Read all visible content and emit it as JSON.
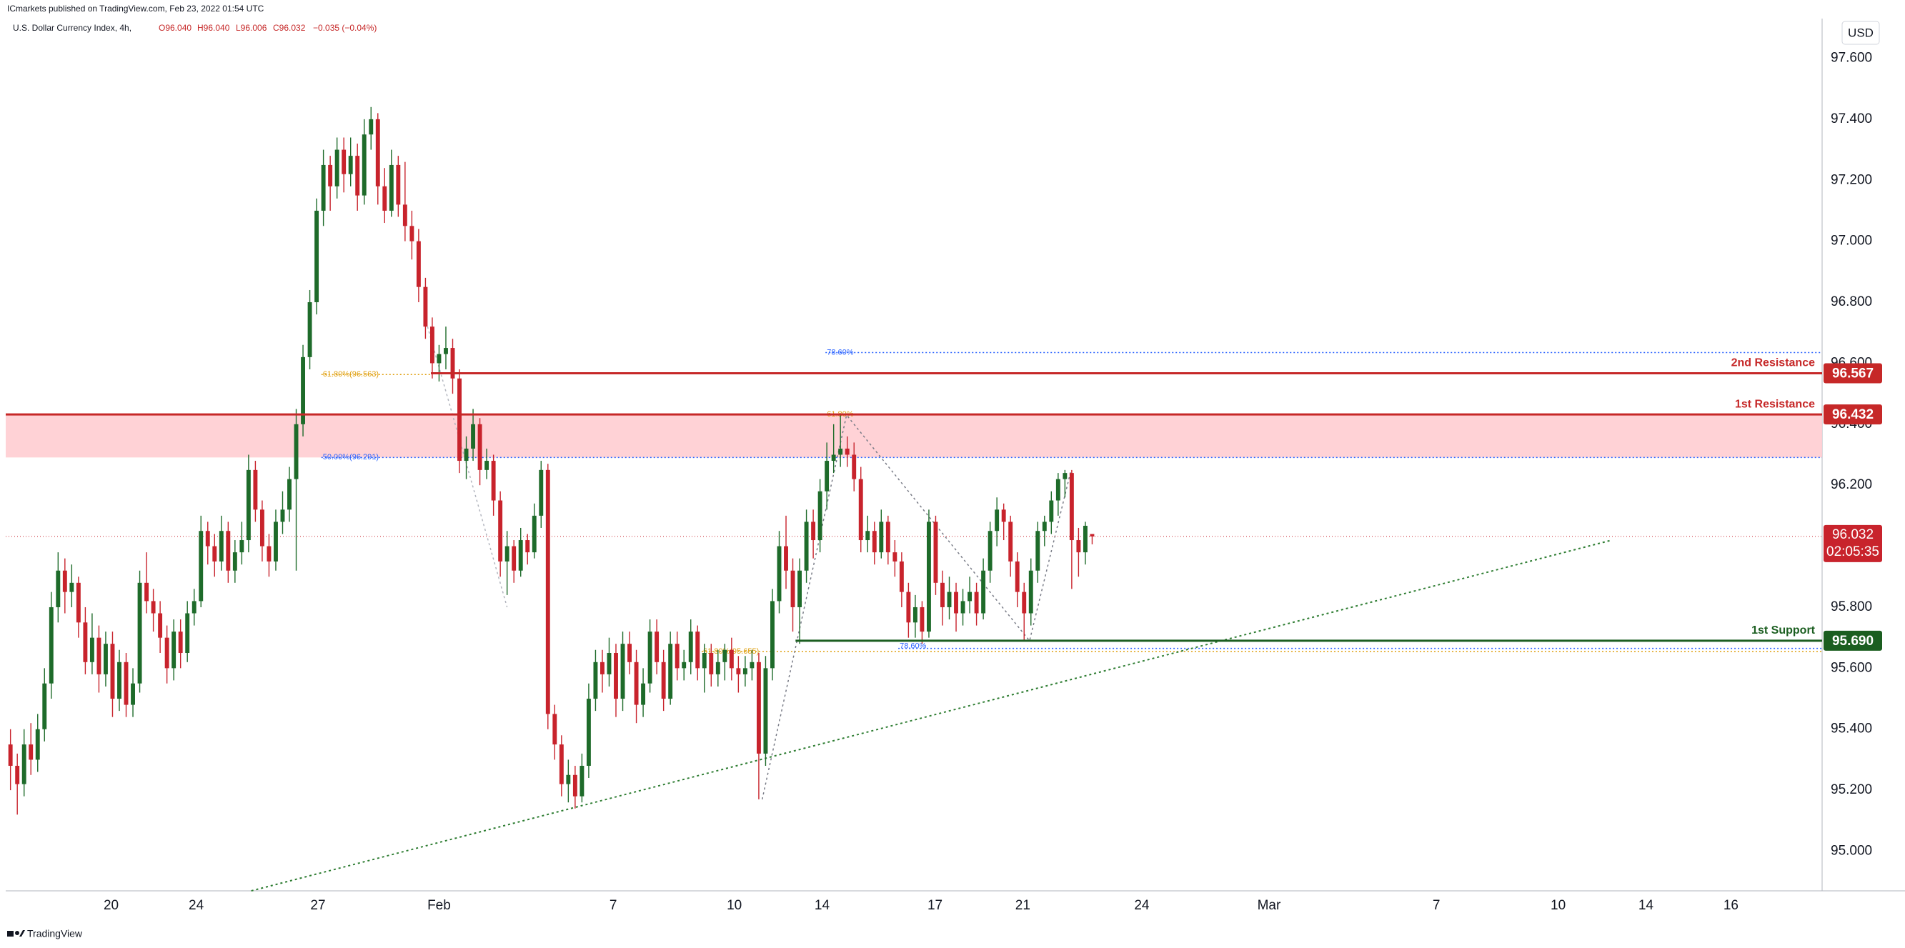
{
  "header": {
    "published": "ICmarkets published on TradingView.com, Feb 23, 2022 01:54 UTC",
    "symbol": "U.S. Dollar Currency Index, 4h,",
    "open": "O96.040",
    "high": "H96.040",
    "low": "L96.006",
    "close": "C96.032",
    "change": "−0.035 (−0.04%)"
  },
  "footer": {
    "brand": "TradingView"
  },
  "chart_data": {
    "type": "candlestick",
    "currency": "USD",
    "up_color": "#1e6b2a",
    "down_color": "#c8232c",
    "xlim": [
      -0.7,
      266.3
    ],
    "ylim": [
      94.87,
      97.73
    ],
    "grid": false,
    "xticks": [
      {
        "value": 14.8,
        "label": "20"
      },
      {
        "value": 27.3,
        "label": "24"
      },
      {
        "value": 45.2,
        "label": "27"
      },
      {
        "value": 63,
        "label": "Feb"
      },
      {
        "value": 88.6,
        "label": "7"
      },
      {
        "value": 106.4,
        "label": "10"
      },
      {
        "value": 119.3,
        "label": "14"
      },
      {
        "value": 135.9,
        "label": "17"
      },
      {
        "value": 148.8,
        "label": "21"
      },
      {
        "value": 166.3,
        "label": "24"
      },
      {
        "value": 185,
        "label": "Mar"
      },
      {
        "value": 209.6,
        "label": "7"
      },
      {
        "value": 227.5,
        "label": "10"
      },
      {
        "value": 240.4,
        "label": "14"
      },
      {
        "value": 252.9,
        "label": "16"
      }
    ],
    "yticks": [
      {
        "value": 95.0,
        "label": "95.000"
      },
      {
        "value": 95.2,
        "label": "95.200"
      },
      {
        "value": 95.4,
        "label": "95.400"
      },
      {
        "value": 95.6,
        "label": "95.600"
      },
      {
        "value": 95.8,
        "label": "95.800"
      },
      {
        "value": 96.0,
        "label": "96.000"
      },
      {
        "value": 96.2,
        "label": "96.200"
      },
      {
        "value": 96.4,
        "label": "96.400"
      },
      {
        "value": 96.6,
        "label": "96.600"
      },
      {
        "value": 96.8,
        "label": "96.800"
      },
      {
        "value": 97.0,
        "label": "97.000"
      },
      {
        "value": 97.2,
        "label": "97.200"
      },
      {
        "value": 97.4,
        "label": "97.400"
      },
      {
        "value": 97.6,
        "label": "97.600"
      }
    ],
    "candles": [
      [
        95.35,
        95.4,
        95.2,
        95.28
      ],
      [
        95.28,
        95.32,
        95.12,
        95.22
      ],
      [
        95.22,
        95.4,
        95.18,
        95.35
      ],
      [
        95.35,
        95.42,
        95.25,
        95.3
      ],
      [
        95.3,
        95.45,
        95.26,
        95.4
      ],
      [
        95.4,
        95.6,
        95.36,
        95.55
      ],
      [
        95.55,
        95.85,
        95.5,
        95.8
      ],
      [
        95.8,
        95.98,
        95.75,
        95.92
      ],
      [
        95.92,
        95.96,
        95.78,
        95.85
      ],
      [
        95.85,
        95.94,
        95.8,
        95.88
      ],
      [
        95.88,
        95.9,
        95.7,
        95.75
      ],
      [
        95.75,
        95.8,
        95.58,
        95.62
      ],
      [
        95.62,
        95.78,
        95.58,
        95.7
      ],
      [
        95.7,
        95.74,
        95.52,
        95.58
      ],
      [
        95.58,
        95.72,
        95.54,
        95.68
      ],
      [
        95.68,
        95.72,
        95.44,
        95.5
      ],
      [
        95.5,
        95.66,
        95.46,
        95.62
      ],
      [
        95.62,
        95.65,
        95.44,
        95.48
      ],
      [
        95.48,
        95.6,
        95.44,
        95.55
      ],
      [
        95.55,
        95.92,
        95.52,
        95.88
      ],
      [
        95.88,
        95.98,
        95.78,
        95.82
      ],
      [
        95.82,
        95.86,
        95.72,
        95.78
      ],
      [
        95.78,
        95.82,
        95.65,
        95.7
      ],
      [
        95.7,
        95.74,
        95.55,
        95.6
      ],
      [
        95.6,
        95.76,
        95.56,
        95.72
      ],
      [
        95.72,
        95.76,
        95.6,
        95.65
      ],
      [
        95.65,
        95.82,
        95.62,
        95.78
      ],
      [
        95.78,
        95.86,
        95.74,
        95.82
      ],
      [
        95.82,
        96.1,
        95.8,
        96.05
      ],
      [
        96.05,
        96.08,
        95.94,
        96.0
      ],
      [
        96.0,
        96.04,
        95.9,
        95.95
      ],
      [
        95.95,
        96.1,
        95.92,
        96.05
      ],
      [
        96.05,
        96.08,
        95.88,
        95.92
      ],
      [
        95.92,
        96.02,
        95.88,
        95.98
      ],
      [
        95.98,
        96.08,
        95.94,
        96.02
      ],
      [
        96.02,
        96.3,
        95.98,
        96.25
      ],
      [
        96.25,
        96.28,
        96.08,
        96.12
      ],
      [
        96.12,
        96.15,
        95.95,
        96.0
      ],
      [
        96.0,
        96.04,
        95.9,
        95.95
      ],
      [
        95.95,
        96.12,
        95.92,
        96.08
      ],
      [
        96.08,
        96.18,
        96.04,
        96.12
      ],
      [
        96.12,
        96.26,
        96.08,
        96.22
      ],
      [
        96.22,
        96.45,
        95.92,
        96.4
      ],
      [
        96.4,
        96.66,
        96.36,
        96.62
      ],
      [
        96.62,
        96.84,
        96.58,
        96.8
      ],
      [
        96.8,
        97.14,
        96.76,
        97.1
      ],
      [
        97.1,
        97.3,
        97.05,
        97.25
      ],
      [
        97.25,
        97.28,
        97.1,
        97.18
      ],
      [
        97.18,
        97.34,
        97.14,
        97.3
      ],
      [
        97.3,
        97.34,
        97.16,
        97.22
      ],
      [
        97.22,
        97.34,
        97.18,
        97.28
      ],
      [
        97.28,
        97.32,
        97.1,
        97.15
      ],
      [
        97.15,
        97.4,
        97.12,
        97.35
      ],
      [
        97.35,
        97.44,
        97.3,
        97.4
      ],
      [
        97.4,
        97.42,
        97.12,
        97.18
      ],
      [
        97.18,
        97.24,
        97.06,
        97.1
      ],
      [
        97.1,
        97.3,
        97.08,
        97.25
      ],
      [
        97.25,
        97.28,
        97.08,
        97.12
      ],
      [
        97.12,
        97.26,
        97.0,
        97.05
      ],
      [
        97.05,
        97.1,
        96.94,
        97.0
      ],
      [
        97.0,
        97.04,
        96.8,
        96.85
      ],
      [
        96.85,
        96.88,
        96.68,
        96.72
      ],
      [
        96.72,
        96.75,
        96.55,
        96.6
      ],
      [
        96.6,
        96.66,
        96.54,
        96.63
      ],
      [
        96.63,
        96.72,
        96.58,
        96.65
      ],
      [
        96.65,
        96.68,
        96.5,
        96.55
      ],
      [
        96.55,
        96.58,
        96.24,
        96.28
      ],
      [
        96.28,
        96.36,
        96.22,
        96.32
      ],
      [
        96.32,
        96.45,
        96.28,
        96.4
      ],
      [
        96.4,
        96.42,
        96.2,
        96.25
      ],
      [
        96.25,
        96.32,
        96.22,
        96.28
      ],
      [
        96.28,
        96.3,
        96.1,
        96.15
      ],
      [
        96.15,
        96.18,
        95.9,
        95.95
      ],
      [
        95.95,
        96.05,
        95.84,
        96.0
      ],
      [
        96.0,
        96.02,
        95.88,
        95.92
      ],
      [
        95.92,
        96.06,
        95.9,
        96.02
      ],
      [
        96.02,
        96.04,
        95.94,
        95.98
      ],
      [
        95.98,
        96.14,
        95.96,
        96.1
      ],
      [
        96.1,
        96.28,
        96.06,
        96.25
      ],
      [
        96.25,
        96.27,
        95.4,
        95.45
      ],
      [
        95.45,
        95.48,
        95.3,
        95.35
      ],
      [
        95.35,
        95.38,
        95.18,
        95.22
      ],
      [
        95.22,
        95.3,
        95.16,
        95.25
      ],
      [
        95.25,
        95.28,
        95.14,
        95.18
      ],
      [
        95.18,
        95.32,
        95.16,
        95.28
      ],
      [
        95.28,
        95.55,
        95.24,
        95.5
      ],
      [
        95.5,
        95.66,
        95.46,
        95.62
      ],
      [
        95.62,
        95.66,
        95.52,
        95.58
      ],
      [
        95.58,
        95.7,
        95.54,
        95.65
      ],
      [
        95.65,
        95.68,
        95.44,
        95.5
      ],
      [
        95.5,
        95.72,
        95.46,
        95.68
      ],
      [
        95.68,
        95.72,
        95.58,
        95.62
      ],
      [
        95.62,
        95.66,
        95.42,
        95.48
      ],
      [
        95.48,
        95.6,
        95.44,
        95.55
      ],
      [
        95.55,
        95.76,
        95.52,
        95.72
      ],
      [
        95.72,
        95.76,
        95.58,
        95.62
      ],
      [
        95.62,
        95.66,
        95.46,
        95.5
      ],
      [
        95.5,
        95.72,
        95.48,
        95.68
      ],
      [
        95.68,
        95.72,
        95.56,
        95.6
      ],
      [
        95.6,
        95.66,
        95.56,
        95.62
      ],
      [
        95.62,
        95.76,
        95.58,
        95.72
      ],
      [
        95.72,
        95.74,
        95.56,
        95.6
      ],
      [
        95.6,
        95.68,
        95.52,
        95.65
      ],
      [
        95.65,
        95.68,
        95.54,
        95.58
      ],
      [
        95.58,
        95.66,
        95.54,
        95.62
      ],
      [
        95.62,
        95.68,
        95.56,
        95.66
      ],
      [
        95.66,
        95.7,
        95.56,
        95.6
      ],
      [
        95.6,
        95.64,
        95.52,
        95.58
      ],
      [
        95.58,
        95.64,
        95.54,
        95.6
      ],
      [
        95.6,
        95.66,
        95.56,
        95.62
      ],
      [
        95.62,
        95.65,
        95.17,
        95.32
      ],
      [
        95.32,
        95.64,
        95.28,
        95.6
      ],
      [
        95.6,
        95.86,
        95.56,
        95.82
      ],
      [
        95.82,
        96.05,
        95.78,
        96.0
      ],
      [
        96.0,
        96.1,
        95.86,
        95.92
      ],
      [
        95.92,
        95.96,
        95.72,
        95.8
      ],
      [
        95.8,
        95.96,
        95.68,
        95.92
      ],
      [
        95.92,
        96.12,
        95.88,
        96.08
      ],
      [
        96.08,
        96.12,
        95.96,
        96.02
      ],
      [
        96.02,
        96.22,
        95.98,
        96.18
      ],
      [
        96.18,
        96.34,
        96.12,
        96.28
      ],
      [
        96.28,
        96.4,
        96.24,
        96.3
      ],
      [
        96.3,
        96.43,
        96.26,
        96.32
      ],
      [
        96.32,
        96.36,
        96.26,
        96.3
      ],
      [
        96.3,
        96.34,
        96.18,
        96.22
      ],
      [
        96.22,
        96.26,
        95.98,
        96.02
      ],
      [
        96.02,
        96.1,
        95.98,
        96.05
      ],
      [
        96.05,
        96.08,
        95.94,
        95.98
      ],
      [
        95.98,
        96.12,
        95.96,
        96.08
      ],
      [
        96.08,
        96.1,
        95.94,
        95.98
      ],
      [
        95.98,
        96.02,
        95.9,
        95.95
      ],
      [
        95.95,
        95.98,
        95.8,
        95.85
      ],
      [
        95.85,
        95.88,
        95.7,
        95.75
      ],
      [
        95.75,
        95.84,
        95.7,
        95.8
      ],
      [
        95.8,
        95.82,
        95.68,
        95.72
      ],
      [
        95.72,
        96.12,
        95.7,
        96.08
      ],
      [
        96.08,
        96.1,
        95.84,
        95.88
      ],
      [
        95.88,
        95.92,
        95.74,
        95.8
      ],
      [
        95.8,
        95.9,
        95.76,
        95.85
      ],
      [
        95.85,
        95.88,
        95.72,
        95.78
      ],
      [
        95.78,
        95.86,
        95.74,
        95.82
      ],
      [
        95.82,
        95.9,
        95.78,
        95.85
      ],
      [
        95.85,
        95.88,
        95.74,
        95.78
      ],
      [
        95.78,
        95.96,
        95.76,
        95.92
      ],
      [
        95.92,
        96.08,
        95.88,
        96.05
      ],
      [
        96.05,
        96.16,
        96.0,
        96.12
      ],
      [
        96.12,
        96.14,
        96.02,
        96.08
      ],
      [
        96.08,
        96.1,
        95.9,
        95.95
      ],
      [
        95.95,
        95.98,
        95.8,
        95.85
      ],
      [
        95.85,
        95.88,
        95.69,
        95.78
      ],
      [
        95.78,
        95.96,
        95.74,
        95.92
      ],
      [
        95.92,
        96.08,
        95.88,
        96.05
      ],
      [
        96.05,
        96.1,
        96.0,
        96.08
      ],
      [
        96.08,
        96.18,
        96.04,
        96.15
      ],
      [
        96.15,
        96.24,
        96.1,
        96.22
      ],
      [
        96.22,
        96.25,
        96.16,
        96.24
      ],
      [
        96.24,
        96.25,
        95.86,
        96.02
      ],
      [
        96.02,
        96.06,
        95.9,
        95.98
      ],
      [
        95.98,
        96.08,
        95.94,
        96.067
      ],
      [
        96.04,
        96.04,
        96.006,
        96.032
      ]
    ],
    "zone": {
      "from": 96.291,
      "to": 96.432,
      "color": "#ffcdd2"
    },
    "levels": [
      {
        "name": "2nd Resistance",
        "value": 96.567,
        "label": "96.567",
        "from": 61.8,
        "color": "#c62828"
      },
      {
        "name": "1st Resistance",
        "value": 96.432,
        "label": "96.432",
        "from": -0.7,
        "color": "#c62828"
      },
      {
        "name": "1st Support",
        "value": 95.69,
        "label": "95.690",
        "from": 115.4,
        "color": "#1b5e20"
      }
    ],
    "last": {
      "value": 96.032,
      "label": "96.032",
      "countdown": "02:05:35",
      "color": "#c8232c"
    },
    "fibs": [
      {
        "label": "78.60%",
        "value": 96.635,
        "from": 119.8,
        "color": "#2962ff"
      },
      {
        "label": "61.80%(96.563)",
        "value": 96.563,
        "from": 45.7,
        "to": 62,
        "color": "#e0a010"
      },
      {
        "label": "50.00%(96.291)",
        "value": 96.291,
        "from": 45.7,
        "color": "#2962ff"
      },
      {
        "label": "61.80%",
        "value": 96.432,
        "from": 119.8,
        "color": "#e0a010"
      },
      {
        "label": "61.80%(95.655)",
        "value": 95.655,
        "from": 101.6,
        "color": "#e0a010"
      },
      {
        "label": "78.60%",
        "value": 95.665,
        "from": 130.5,
        "color": "#2962ff"
      }
    ],
    "trendline": {
      "points": [
        [
          35.4,
          94.87
        ],
        [
          235.4,
          96.02
        ]
      ],
      "color": "#2e7d32"
    },
    "zigzags": [
      {
        "points": [
          [
            110.5,
            95.17
          ],
          [
            122.9,
            96.43
          ],
          [
            149.8,
            95.69
          ],
          [
            155.9,
            96.25
          ]
        ],
        "color": "#787b86"
      },
      {
        "points": [
          [
            61.3,
            96.72
          ],
          [
            73,
            95.8
          ]
        ],
        "color": "#b2b5be"
      }
    ]
  }
}
